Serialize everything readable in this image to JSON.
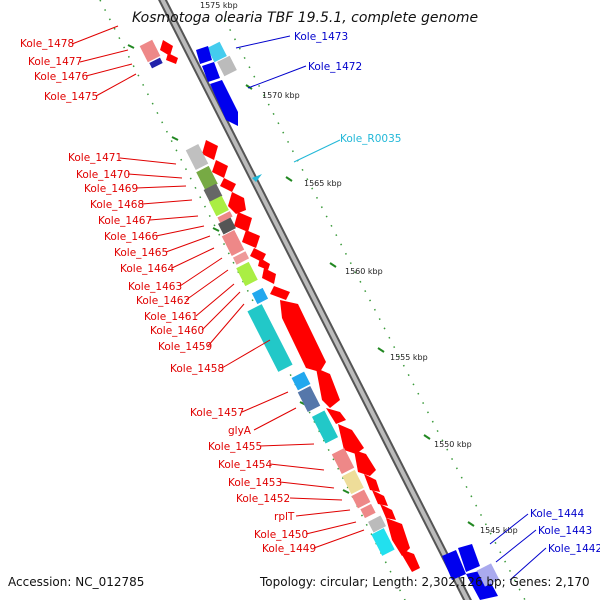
{
  "title": "Kosmotoga olearia TBF 19.5.1, complete genome",
  "accession": "Accession: NC_012785",
  "topology": "Topology: circular; Length: 2,302,126 bp; Genes: 2,170",
  "ticks": [
    "1575 kbp",
    "1570 kbp",
    "1565 kbp",
    "1560 kbp",
    "1555 kbp",
    "1550 kbp",
    "1545 kbp"
  ],
  "labels": {
    "left": [
      "Kole_1478",
      "Kole_1477",
      "Kole_1476",
      "Kole_1475",
      "Kole_1471",
      "Kole_1470",
      "Kole_1469",
      "Kole_1468",
      "Kole_1467",
      "Kole_1466",
      "Kole_1465",
      "Kole_1464",
      "Kole_1463",
      "Kole_1462",
      "Kole_1461",
      "Kole_1460",
      "Kole_1459",
      "Kole_1458",
      "Kole_1457",
      "glyA",
      "Kole_1455",
      "Kole_1454",
      "Kole_1453",
      "Kole_1452",
      "rplT",
      "Kole_1450",
      "Kole_1449"
    ],
    "right_blue": [
      "Kole_1473",
      "Kole_1472",
      "Kole_1444",
      "Kole_1443",
      "Kole_1442"
    ],
    "right_cyan": [
      "Kole_R0035"
    ]
  },
  "colors": {
    "red": "#ff0000",
    "blue": "#0000ee",
    "cyan": "#22c0e0",
    "backbone": "#888888",
    "tick_green": "#228822"
  }
}
